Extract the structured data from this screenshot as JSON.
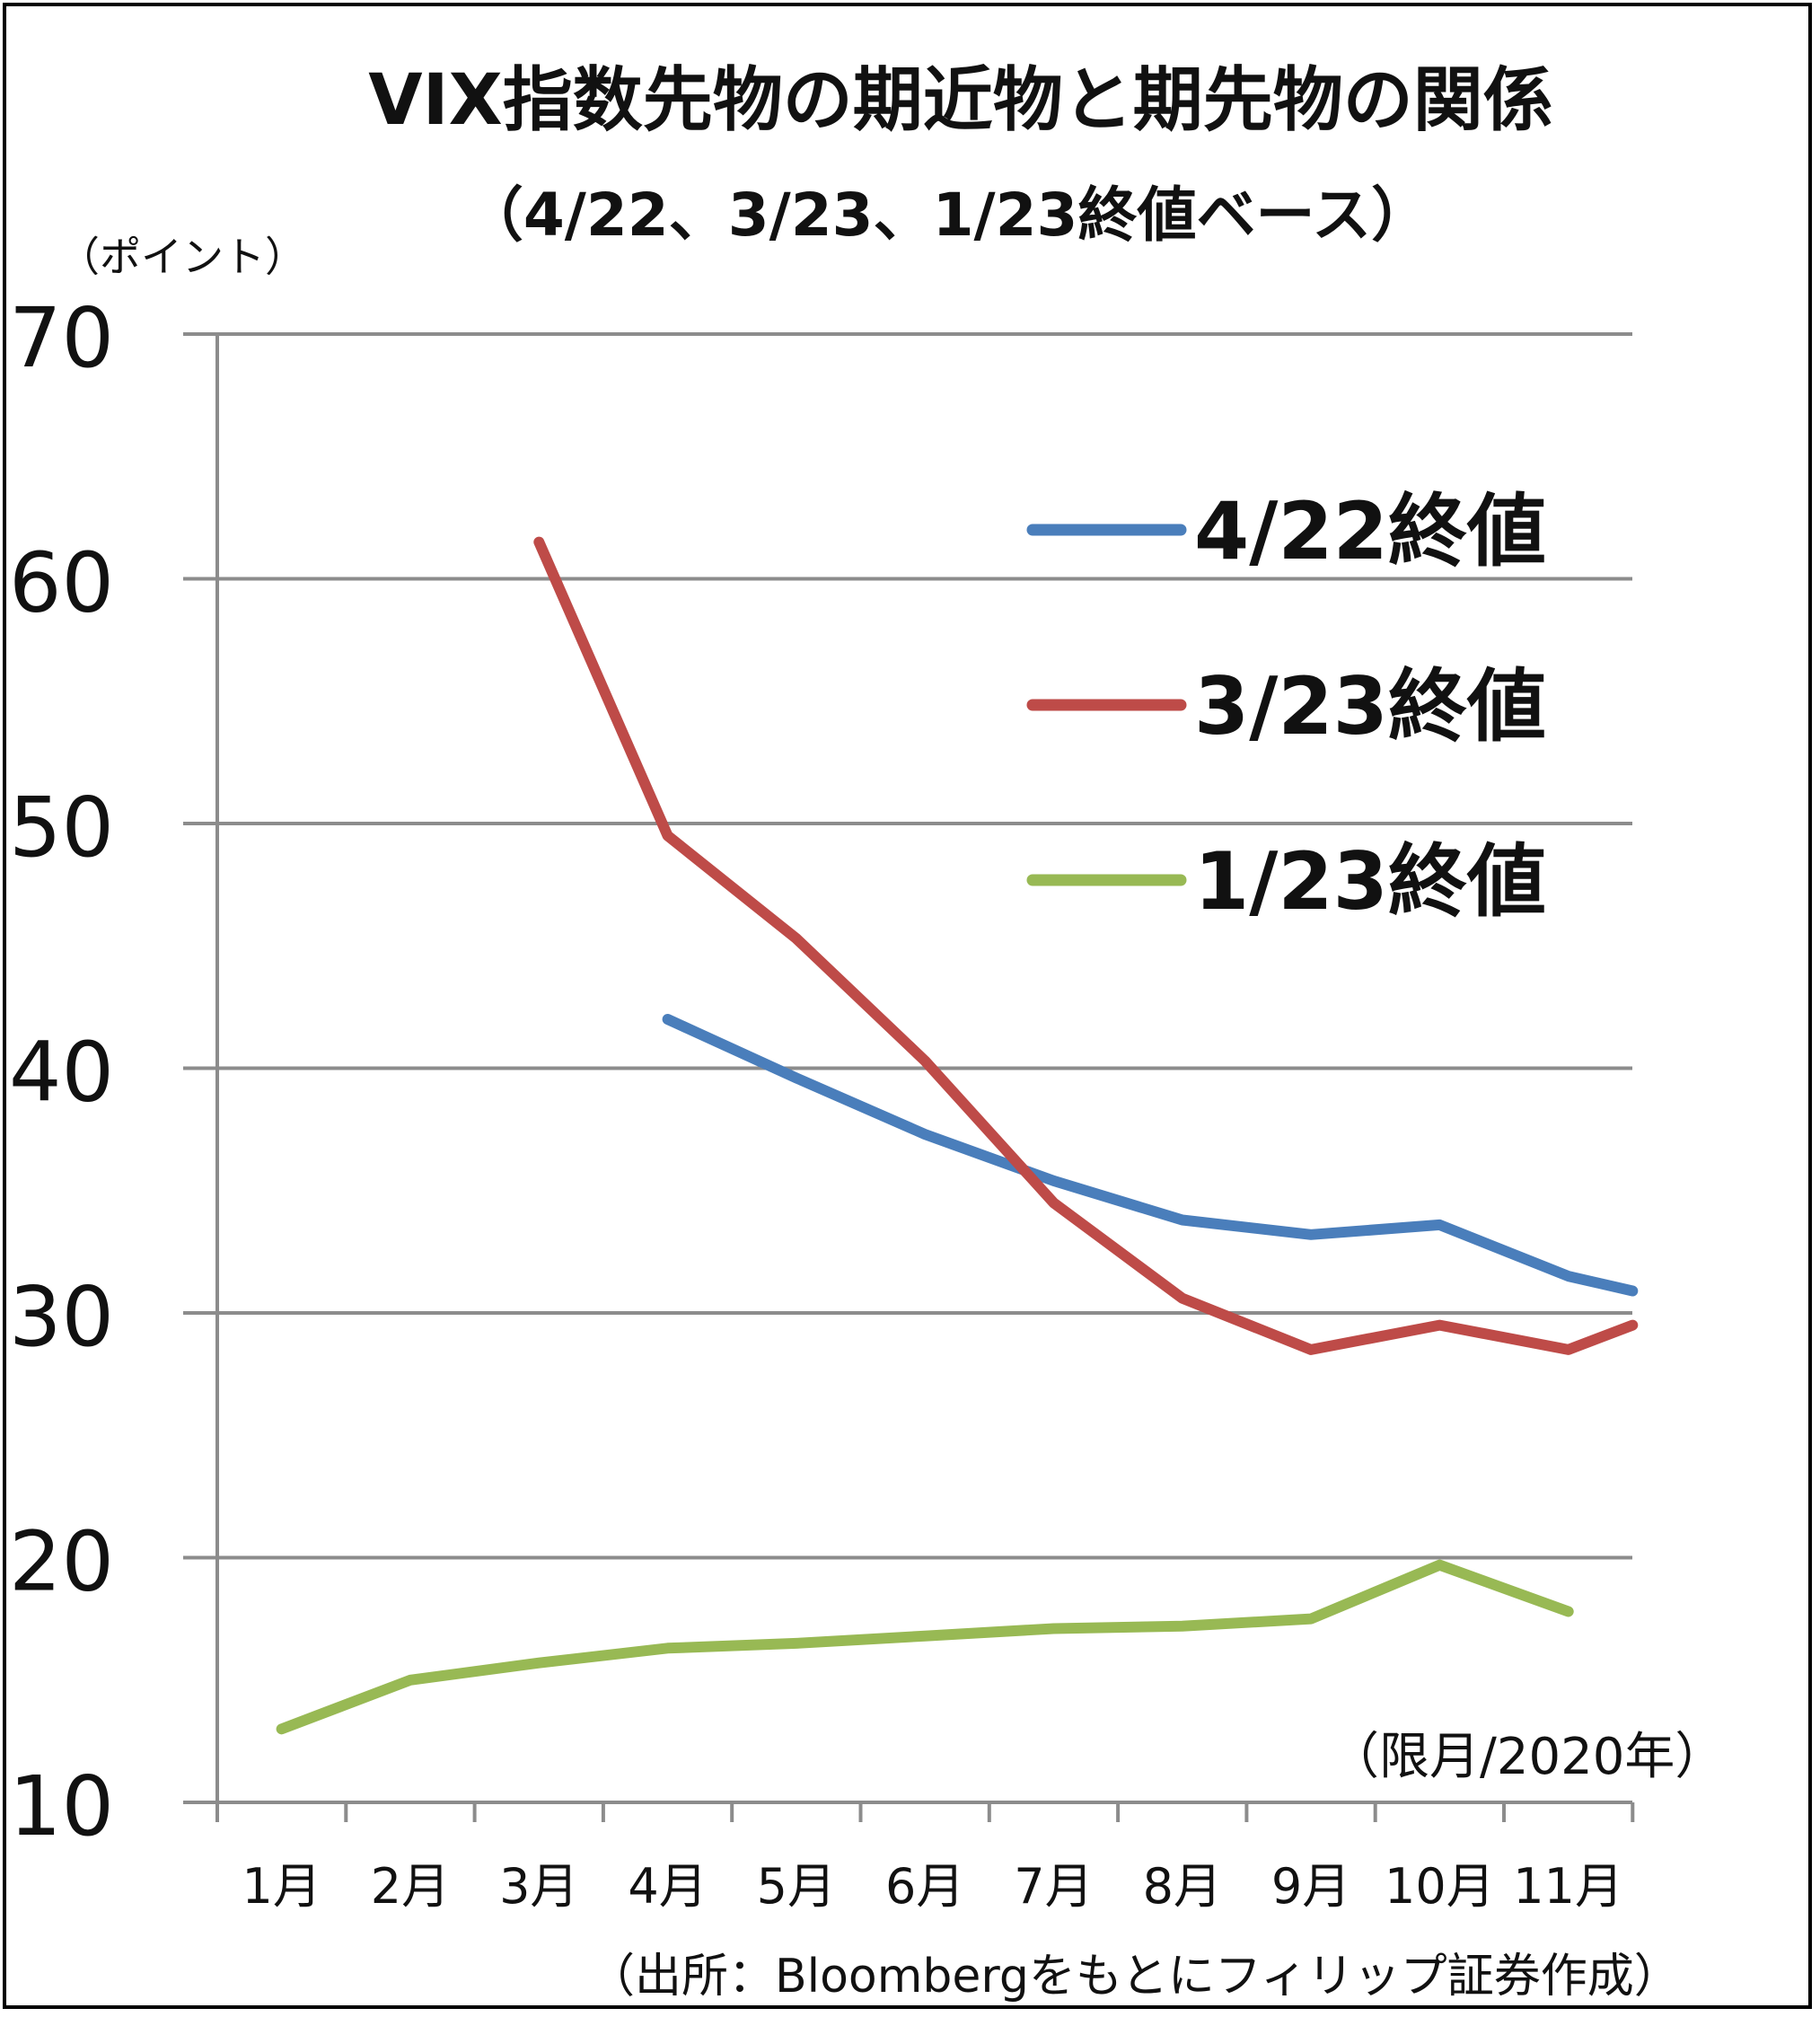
{
  "chart_data": {
    "type": "line",
    "title": "VIX指数先物の期近物と期先物の関係",
    "subtitle": "（4/22、3/23、1/23終値ベース）",
    "ylabel": "（ポイント）",
    "xlabel": "（限月/2020年）",
    "source": "（出所：Bloombergをもとにフィリップ証券作成）",
    "ylim": [
      10,
      70
    ],
    "yticks": [
      "10",
      "20",
      "30",
      "40",
      "50",
      "60",
      "70"
    ],
    "categories": [
      "1月",
      "2月",
      "3月",
      "4月",
      "5月",
      "6月",
      "7月",
      "8月",
      "9月",
      "10月",
      "11月"
    ],
    "grid": true,
    "legend_position": "top-right",
    "series": [
      {
        "name": "4/22終値",
        "color": "#4a7ebb",
        "points": [
          [
            4,
            42.0
          ],
          [
            5,
            39.6
          ],
          [
            6,
            37.3
          ],
          [
            7,
            35.4
          ],
          [
            8,
            33.8
          ],
          [
            9,
            33.2
          ],
          [
            10,
            33.6
          ],
          [
            11,
            31.5
          ],
          [
            11.5,
            30.9
          ]
        ]
      },
      {
        "name": "3/23終値",
        "color": "#be4b48",
        "points": [
          [
            3,
            61.5
          ],
          [
            4,
            49.5
          ],
          [
            5,
            45.3
          ],
          [
            6,
            40.3
          ],
          [
            7,
            34.5
          ],
          [
            8,
            30.6
          ],
          [
            9,
            28.5
          ],
          [
            10,
            29.5
          ],
          [
            11,
            28.5
          ],
          [
            11.5,
            29.5
          ]
        ]
      },
      {
        "name": "1/23終値",
        "color": "#98b954",
        "points": [
          [
            1,
            13.0
          ],
          [
            2,
            15.0
          ],
          [
            3,
            15.7
          ],
          [
            4,
            16.3
          ],
          [
            5,
            16.5
          ],
          [
            6,
            16.8
          ],
          [
            7,
            17.1
          ],
          [
            8,
            17.2
          ],
          [
            9,
            17.5
          ],
          [
            10,
            19.7
          ],
          [
            11,
            17.8
          ]
        ]
      }
    ]
  }
}
